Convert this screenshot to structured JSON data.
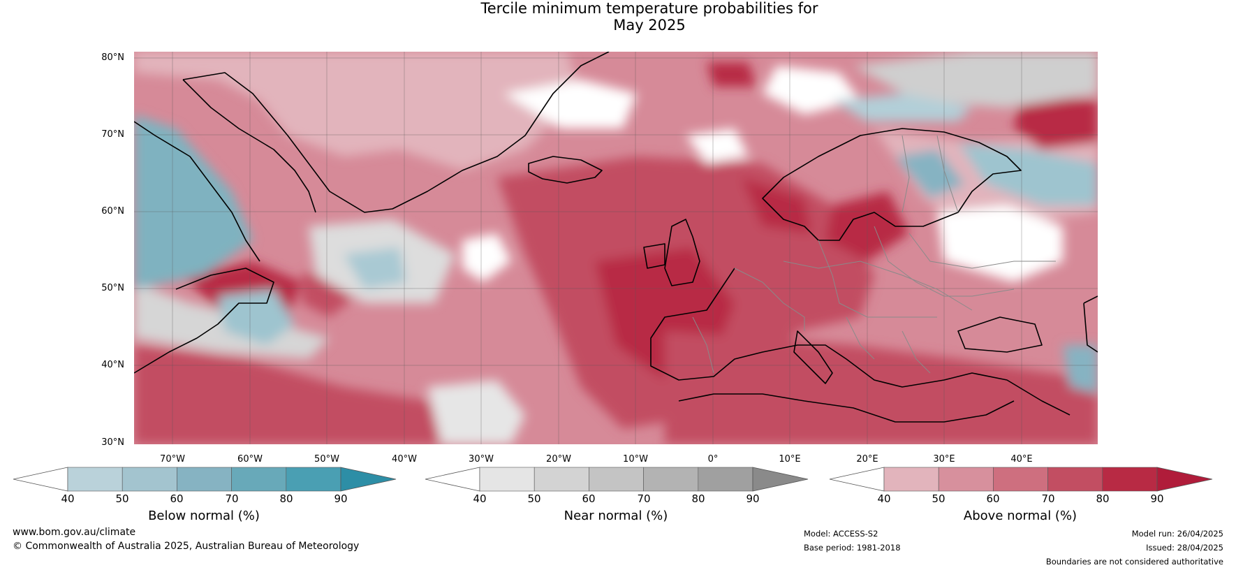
{
  "title": {
    "line1": "Tercile minimum temperature probabilities for",
    "line2": "May 2025"
  },
  "map": {
    "lat_labels": [
      "80°N",
      "70°N",
      "60°N",
      "50°N",
      "40°N",
      "30°N"
    ],
    "lon_labels": [
      "70°W",
      "60°W",
      "50°W",
      "40°W",
      "30°W",
      "20°W",
      "10°W",
      "0°",
      "10°E",
      "20°E",
      "30°E",
      "40°E"
    ],
    "colors": {
      "above_strong": "#b82a44",
      "above_mid": "#ce6b7c",
      "above_light": "#e2b4bc",
      "near": "#d3d3d3",
      "below": "#7fb2c0",
      "land_line": "#000000",
      "border_line": "#8a8a8a"
    }
  },
  "colorbars": [
    {
      "name": "below-normal",
      "label": "Below normal (%)",
      "ticks": [
        "40",
        "50",
        "60",
        "70",
        "80",
        "90"
      ],
      "colors": [
        "#ffffff",
        "#bad2da",
        "#a3c4cf",
        "#86b3c2",
        "#68a9b9",
        "#4a9fb3",
        "#2d8ea6"
      ]
    },
    {
      "name": "near-normal",
      "label": "Near normal (%)",
      "ticks": [
        "40",
        "50",
        "60",
        "70",
        "80",
        "90"
      ],
      "colors": [
        "#ffffff",
        "#e5e5e5",
        "#d3d3d3",
        "#c4c4c4",
        "#b3b3b3",
        "#a0a0a0",
        "#8a8a8a"
      ]
    },
    {
      "name": "above-normal",
      "label": "Above normal (%)",
      "ticks": [
        "40",
        "50",
        "60",
        "70",
        "80",
        "90"
      ],
      "colors": [
        "#ffffff",
        "#e2b4bc",
        "#d7909d",
        "#ce6f7f",
        "#c24e62",
        "#b82a44",
        "#b01c3a"
      ]
    }
  ],
  "footer": {
    "website": "www.bom.gov.au/climate",
    "copyright": "© Commonwealth of Australia 2025, Australian Bureau of Meteorology",
    "model": "Model: ACCESS-S2",
    "base_period": "Base period: 1981-2018",
    "model_run": "Model run: 26/04/2025",
    "issued": "Issued: 28/04/2025",
    "disclaimer": "Boundaries are not considered authoritative"
  }
}
